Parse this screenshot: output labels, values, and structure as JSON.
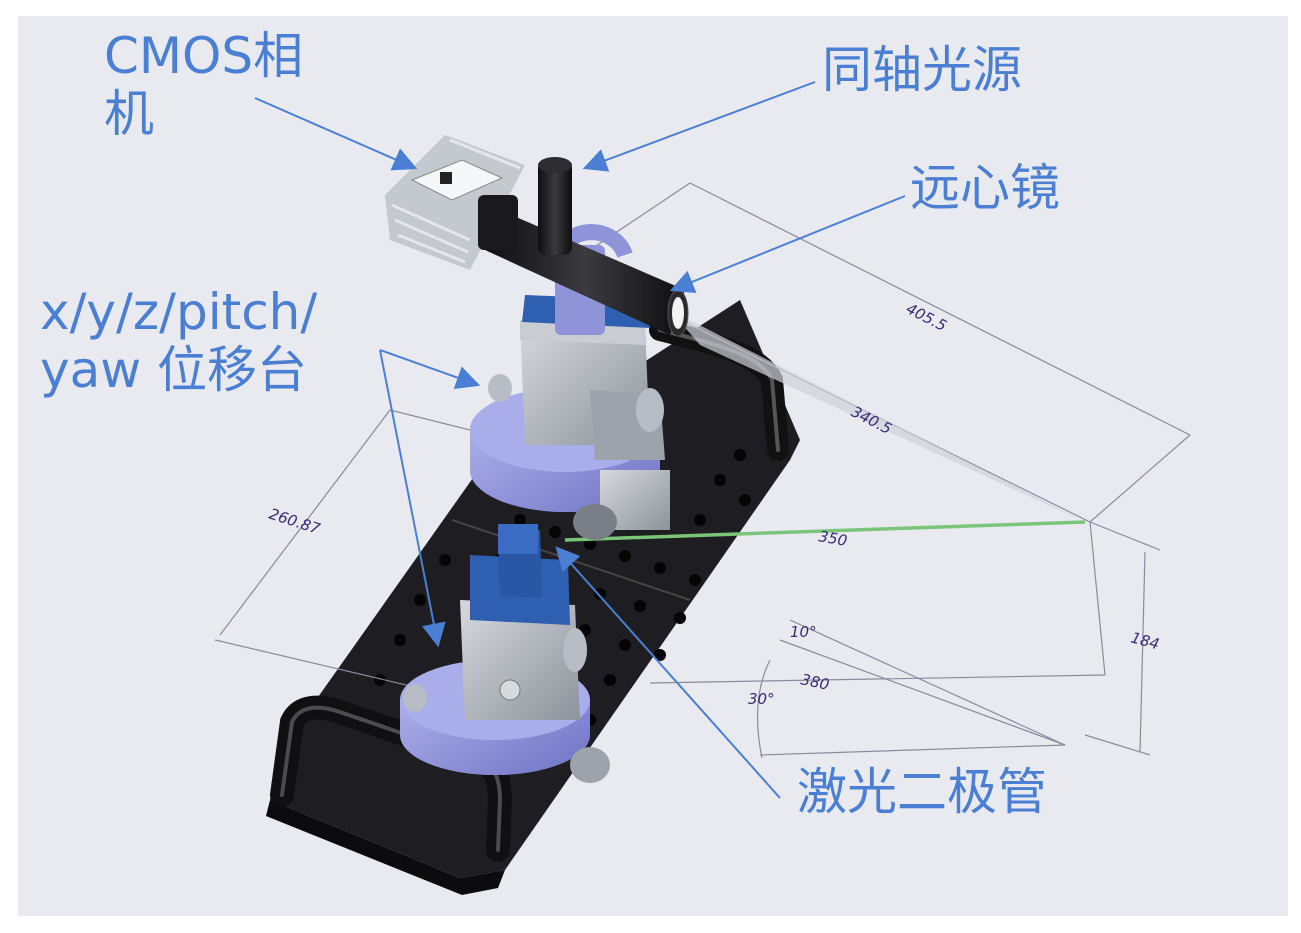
{
  "labels": {
    "cmos_camera": [
      "CMOS相",
      "机"
    ],
    "coaxial_light": "同轴光源",
    "telecentric_lens": "远心镜",
    "stage": [
      "x/y/z/pitch/",
      "yaw 位移台"
    ],
    "laser_diode": "激光二极管"
  },
  "dimensions": {
    "d405": "405.5",
    "d340": "340.5",
    "d350": "350",
    "d260": "260.87",
    "d184": "184",
    "d380": "380",
    "a10": "10°",
    "a30": "30°"
  },
  "colors": {
    "background": "#e8eaef",
    "callout_text": "#4a7fd3",
    "arrow": "#4a7fd3",
    "dimension_text": "#3a2a74",
    "breadboard": "#1e1e22",
    "stage_metal": "#b8bcc4",
    "stage_blue": "#2f5fb0",
    "lavender": "#8f93d8",
    "laser_beam": "#7ac57a"
  }
}
